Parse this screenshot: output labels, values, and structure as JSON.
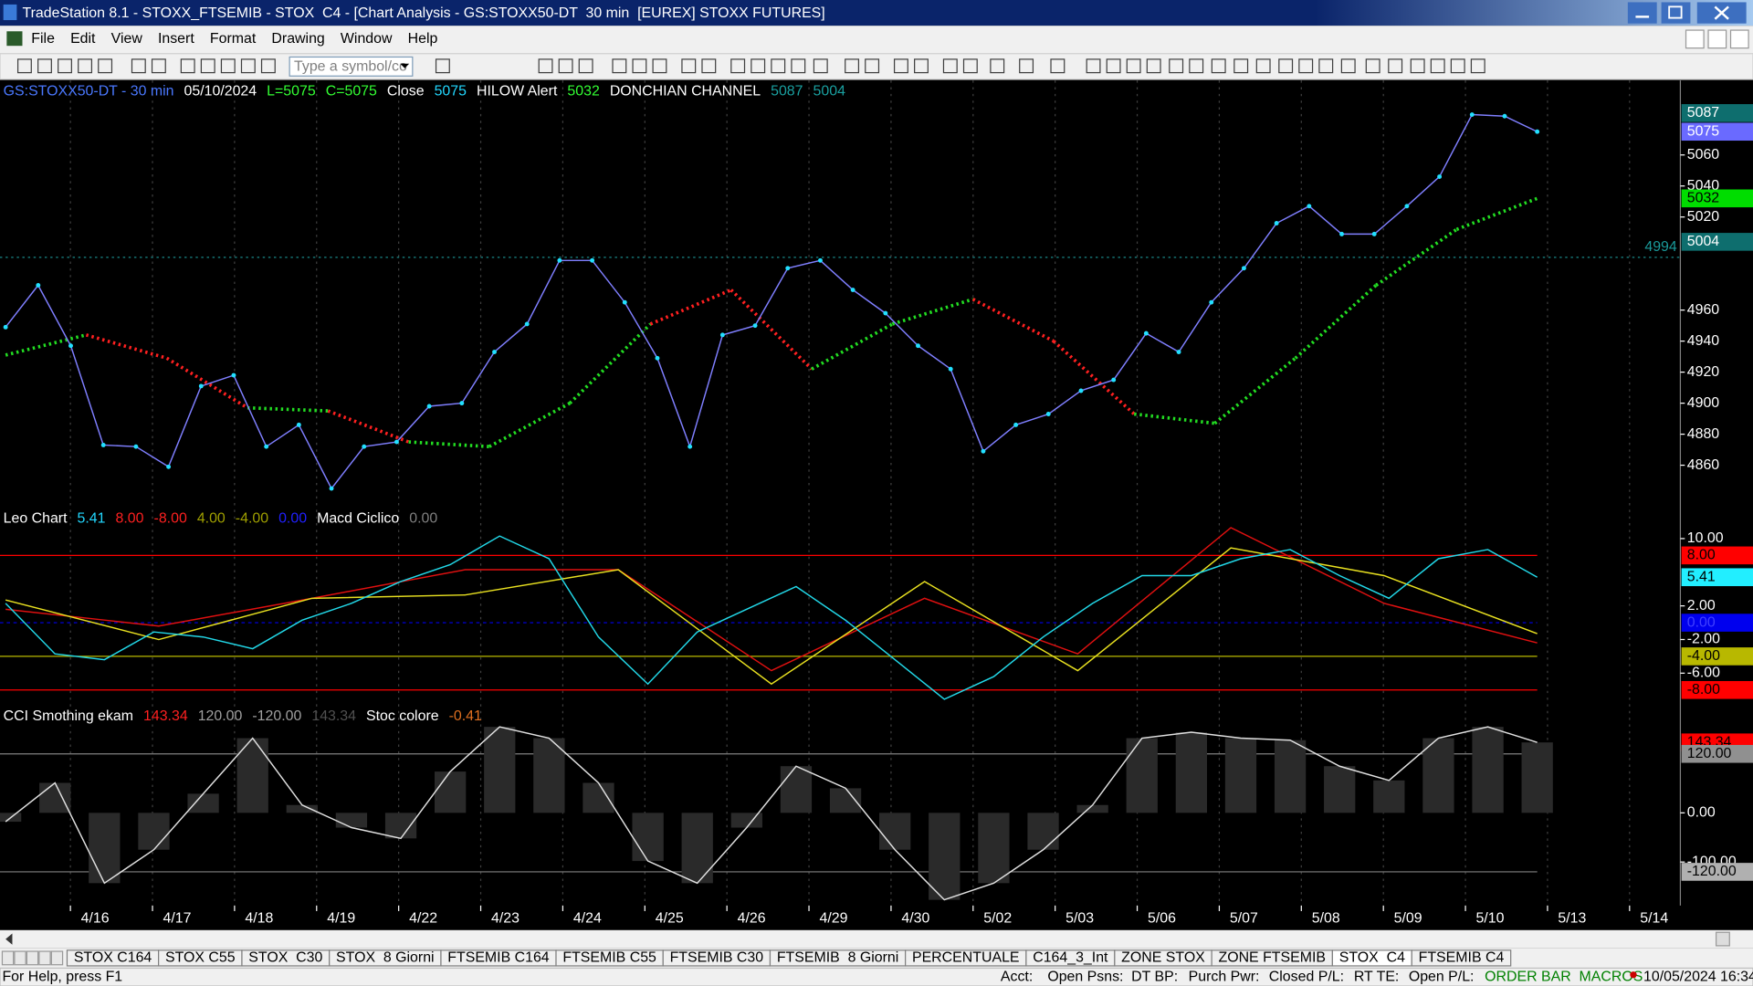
{
  "window": {
    "title": "TradeStation 8.1 - STOXX_FTSEMIB - STOX  C4 - [Chart Analysis - GS:STOXX50-DT  30 min  [EUREX] STOXX FUTURES]"
  },
  "menu": [
    "File",
    "Edit",
    "View",
    "Insert",
    "Format",
    "Drawing",
    "Window",
    "Help"
  ],
  "toolbar": {
    "symbol_input": "Type a symbol/co"
  },
  "price_pane": {
    "header": [
      {
        "text": "GS:STOXX50-DT - 30 min",
        "color": "#4a78ff"
      },
      {
        "text": "05/10/2024",
        "color": "#ffffff"
      },
      {
        "text": "L=5075",
        "color": "#33ff33"
      },
      {
        "text": "C=5075",
        "color": "#33ff33"
      },
      {
        "text": "Close",
        "color": "#ffffff"
      },
      {
        "text": "5075",
        "color": "#22d8ff"
      },
      {
        "text": "HILOW Alert",
        "color": "#ffffff"
      },
      {
        "text": "5032",
        "color": "#33ff33"
      },
      {
        "text": "DONCHIAN CHANNEL",
        "color": "#ffffff"
      },
      {
        "text": "5087",
        "color": "#1aa0a0"
      },
      {
        "text": "5004",
        "color": "#1aa0a0"
      }
    ],
    "ylim": [
      4832,
      5108
    ],
    "yticks": [
      4860,
      4880,
      4900,
      4920,
      4940,
      4960,
      5020,
      5040,
      5060
    ],
    "markers": [
      {
        "value": 5087,
        "bg": "#0e6e6e",
        "fg": "#ffffff"
      },
      {
        "value": 5075,
        "bg": "#6a6aff",
        "fg": "#ffffff"
      },
      {
        "value": 5032,
        "bg": "#00dd00",
        "fg": "#000000"
      },
      {
        "value": 5004,
        "bg": "#0e6e6e",
        "fg": "#ffffff"
      }
    ],
    "level": 4994,
    "close": {
      "name": "Close",
      "color": "#7f7fff",
      "values": [
        4949,
        4976,
        4937,
        4873,
        4872,
        4859,
        4911,
        4918,
        4872,
        4886,
        4845,
        4872,
        4875,
        4898,
        4900,
        4933,
        4951,
        4992,
        4992,
        4965,
        4929,
        4872,
        4944,
        4950,
        4987,
        4992,
        4973,
        4958,
        4937,
        4922,
        4869,
        4886,
        4893,
        4908,
        4915,
        4945,
        4933,
        4965,
        4987,
        5016,
        5027,
        5009,
        5009,
        5027,
        5046,
        5086,
        5085,
        5075
      ]
    },
    "hilow": {
      "name": "HILOW Alert",
      "values": [
        4931,
        4944,
        4929,
        4897,
        4895,
        4875,
        4872,
        4900,
        4951,
        4973,
        4922,
        4951,
        4967,
        4940,
        4893,
        4887,
        4929,
        4976,
        5012,
        5032
      ]
    }
  },
  "leo_pane": {
    "header": [
      {
        "text": "Leo Chart",
        "color": "#ffffff"
      },
      {
        "text": "5.41",
        "color": "#22d8ff"
      },
      {
        "text": "8.00",
        "color": "#ff2020"
      },
      {
        "text": "-8.00",
        "color": "#ff2020"
      },
      {
        "text": "4.00",
        "color": "#a0a000"
      },
      {
        "text": "-4.00",
        "color": "#a0a000"
      },
      {
        "text": "0.00",
        "color": "#2020ff"
      },
      {
        "text": "Macd Ciclico",
        "color": "#ffffff"
      },
      {
        "text": "0.00",
        "color": "#808080"
      }
    ],
    "ylim": [
      -9.7,
      11.3
    ],
    "yticks": [
      {
        "value": 10,
        "label": "10.00"
      },
      {
        "value": 2,
        "label": "2.00"
      },
      {
        "value": -2,
        "label": "-2.00"
      },
      {
        "value": -6,
        "label": "-6.00"
      }
    ],
    "markers": [
      {
        "value": 8,
        "label": "8.00",
        "bg": "#ff0000",
        "fg": "#000000"
      },
      {
        "value": 5.41,
        "label": "5.41",
        "bg": "#22eeff",
        "fg": "#000000"
      },
      {
        "value": 0,
        "label": "0.00",
        "bg": "#0000ee",
        "fg": "#4040ff"
      },
      {
        "value": -4,
        "label": "-4.00",
        "bg": "#b8b800",
        "fg": "#000000"
      },
      {
        "value": -8,
        "label": "-8.00",
        "bg": "#ff0000",
        "fg": "#000000"
      }
    ],
    "leo": {
      "color": "#22d8e8",
      "values": [
        2.3,
        -3.7,
        -4.4,
        -1.1,
        -1.7,
        -3.1,
        0.3,
        2.3,
        4.9,
        6.9,
        10.3,
        7.6,
        -1.7,
        -7.3,
        -1.1,
        1.6,
        4.3,
        0.3,
        -4.4,
        -9.1,
        -6.4,
        -1.7,
        2.3,
        5.6,
        5.6,
        7.6,
        8.7,
        5.6,
        2.9,
        7.6,
        8.7,
        5.41
      ]
    },
    "red": {
      "color": "#e01010",
      "values": [
        1.6,
        -0.4,
        2.9,
        6.3,
        6.3,
        -5.7,
        2.9,
        -3.7,
        11.3,
        2.3,
        -2.4
      ]
    },
    "yellow": {
      "color": "#e8e020",
      "values": [
        2.7,
        -2.0,
        2.9,
        3.3,
        6.3,
        -7.3,
        4.9,
        -5.7,
        8.9,
        5.6,
        -1.3
      ]
    }
  },
  "cci_pane": {
    "header": [
      {
        "text": "CCI Smothing ekam",
        "color": "#ffffff"
      },
      {
        "text": "143.34",
        "color": "#ff2020"
      },
      {
        "text": "120.00",
        "color": "#a0a0a0"
      },
      {
        "text": "-120.00",
        "color": "#a0a0a0"
      },
      {
        "text": "143.34",
        "color": "#505050"
      },
      {
        "text": "Stoc colore",
        "color": "#ffffff"
      },
      {
        "text": "-0.41",
        "color": "#e07020"
      }
    ],
    "ylim": [
      -184,
      180
    ],
    "yticks": [
      {
        "value": 0,
        "label": "0.00"
      },
      {
        "value": -100,
        "label": "-100.00"
      }
    ],
    "markers": [
      {
        "value": 143.34,
        "label": "143.34",
        "bg": "#ff0000",
        "fg": "#000000"
      },
      {
        "value": 120,
        "label": "120.00",
        "bg": "#909090",
        "fg": "#000000"
      },
      {
        "value": -120,
        "label": "-120.00",
        "bg": "#b0b0b0",
        "fg": "#000000"
      }
    ],
    "cci": {
      "color": "#e0e0e0",
      "values": [
        -18,
        61,
        -143,
        -75,
        39,
        152,
        16,
        -30,
        -52,
        84,
        175,
        152,
        61,
        -98,
        -143,
        -30,
        95,
        50,
        -75,
        -177,
        -143,
        -75,
        16,
        152,
        164,
        152,
        148,
        95,
        66,
        152,
        175,
        143.34
      ]
    }
  },
  "dates": [
    "4/16",
    "4/17",
    "4/18",
    "4/19",
    "4/22",
    "4/23",
    "4/24",
    "4/25",
    "4/26",
    "4/29",
    "4/30",
    "5/02",
    "5/03",
    "5/06",
    "5/07",
    "5/08",
    "5/09",
    "5/10",
    "5/13",
    "5/14"
  ],
  "tabs": [
    "STOX C164",
    "STOX C55",
    "STOX  C30",
    "STOX  8 Giorni",
    "FTSEMIB C164",
    "FTSEMIB C55",
    "FTSEMIB C30",
    "FTSEMIB  8 Giorni",
    "PERCENTUALE",
    "C164_3_Int",
    "ZONE STOX",
    "ZONE FTSEMIB",
    "STOX  C4",
    "FTSEMIB C4"
  ],
  "active_tab": "STOX  C4",
  "status": [
    "For Help, press F1",
    "Acct:",
    "Open Psns:",
    "DT BP:",
    "Purch Pwr:",
    "Closed P/L:",
    "RT TE:",
    "Open P/L:",
    "ORDER BAR  MACROS",
    "10/05/2024 16:34"
  ]
}
